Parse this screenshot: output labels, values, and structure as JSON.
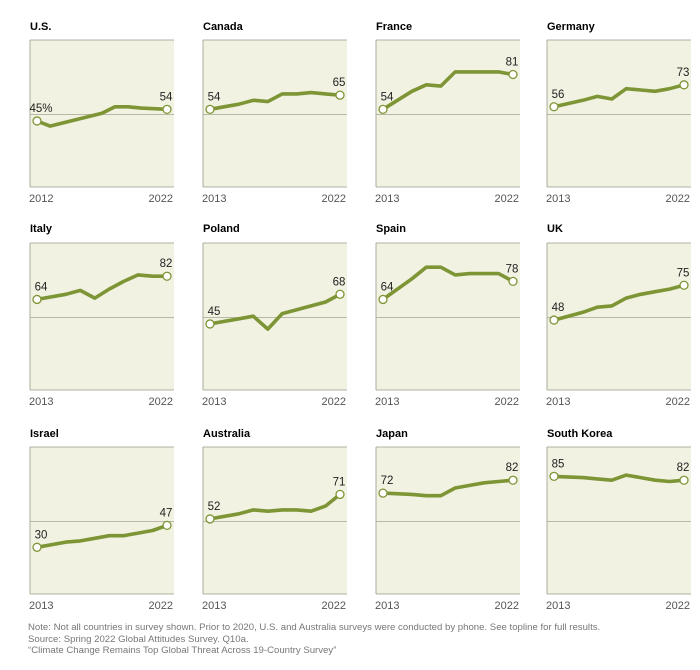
{
  "chart_data": {
    "type": "line",
    "panels": [
      {
        "title": "U.S.",
        "x_start": "2012",
        "x_end": "2022",
        "years": [
          2012,
          2013,
          2015,
          2017,
          2018,
          2019,
          2020,
          2022
        ],
        "values": [
          45,
          41,
          null,
          51,
          56,
          56,
          55,
          54
        ],
        "label_first": "45%",
        "label_last": "54"
      },
      {
        "title": "Canada",
        "x_start": "2013",
        "x_end": "2022",
        "years": [
          2013,
          2015,
          2016,
          2017,
          2018,
          2019,
          2020,
          2021,
          2022
        ],
        "values": [
          54,
          58,
          61,
          60,
          66,
          66,
          67,
          66,
          65
        ],
        "label_first": "54",
        "label_last": "65"
      },
      {
        "title": "France",
        "x_start": "2013",
        "x_end": "2022",
        "years": [
          2013,
          2015,
          2016,
          2017,
          2018,
          2019,
          2020,
          2021,
          2022
        ],
        "values": [
          54,
          68,
          73,
          72,
          83,
          83,
          83,
          83,
          81
        ],
        "label_first": "54",
        "label_last": "81"
      },
      {
        "title": "Germany",
        "x_start": "2013",
        "x_end": "2022",
        "years": [
          2013,
          2015,
          2016,
          2017,
          2018,
          2019,
          2020,
          2021,
          2022
        ],
        "values": [
          56,
          61,
          64,
          62,
          70,
          69,
          68,
          70,
          73
        ],
        "label_first": "56",
        "label_last": "73"
      },
      {
        "title": "Italy",
        "x_start": "2013",
        "x_end": "2022",
        "years": [
          2013,
          2015,
          2016,
          2017,
          2018,
          2019,
          2020,
          2021,
          2022
        ],
        "values": [
          64,
          68,
          71,
          65,
          72,
          78,
          83,
          82,
          82
        ],
        "label_first": "64",
        "label_last": "82"
      },
      {
        "title": "Poland",
        "x_start": "2013",
        "x_end": "2022",
        "years": [
          2013,
          2015,
          2016,
          2017,
          2018,
          2019,
          2020,
          2021,
          2022
        ],
        "values": [
          45,
          49,
          51,
          41,
          53,
          56,
          59,
          62,
          68
        ],
        "label_first": "45",
        "label_last": "68"
      },
      {
        "title": "Spain",
        "x_start": "2013",
        "x_end": "2022",
        "years": [
          2013,
          2015,
          2016,
          2017,
          2018,
          2019,
          2020,
          2021,
          2022
        ],
        "values": [
          64,
          80,
          89,
          89,
          83,
          84,
          84,
          84,
          78
        ],
        "label_first": "64",
        "label_last": "78"
      },
      {
        "title": "UK",
        "x_start": "2013",
        "x_end": "2022",
        "years": [
          2013,
          2015,
          2016,
          2017,
          2018,
          2019,
          2020,
          2021,
          2022
        ],
        "values": [
          48,
          54,
          58,
          59,
          65,
          68,
          70,
          72,
          75
        ],
        "label_first": "48",
        "label_last": "75"
      },
      {
        "title": "Israel",
        "x_start": "2013",
        "x_end": "2022",
        "years": [
          2013,
          2015,
          2016,
          2017,
          2018,
          2019,
          2020,
          2021,
          2022
        ],
        "values": [
          30,
          34,
          35,
          37,
          39,
          39,
          41,
          43,
          47
        ],
        "label_first": "30",
        "label_last": "47"
      },
      {
        "title": "Australia",
        "x_start": "2013",
        "x_end": "2022",
        "years": [
          2013,
          2015,
          2016,
          2017,
          2018,
          2019,
          2020,
          2021,
          2022
        ],
        "values": [
          52,
          56,
          59,
          58,
          59,
          59,
          58,
          62,
          71
        ],
        "label_first": "52",
        "label_last": "71"
      },
      {
        "title": "Japan",
        "x_start": "2013",
        "x_end": "2022",
        "years": [
          2013,
          2015,
          2016,
          2017,
          2018,
          2019,
          2020,
          2021,
          2022
        ],
        "values": [
          72,
          71,
          70,
          70,
          76,
          78,
          80,
          81,
          82
        ],
        "label_first": "72",
        "label_last": "82"
      },
      {
        "title": "South Korea",
        "x_start": "2013",
        "x_end": "2022",
        "years": [
          2013,
          2015,
          2016,
          2017,
          2018,
          2019,
          2020,
          2021,
          2022
        ],
        "values": [
          85,
          84,
          83,
          82,
          86,
          84,
          82,
          81,
          82
        ],
        "label_first": "85",
        "label_last": "82"
      }
    ],
    "grid": true,
    "series_color": "#7e9536"
  },
  "notes": {
    "note": "Note: Not all countries in survey shown. Prior to 2020, U.S. and Australia surveys were conducted by phone. See topline for full results.",
    "source": "Source: Spring 2022 Global Attitudes Survey. Q10a.",
    "report": "“Climate Change Remains Top Global Threat Across 19-Country Survey”"
  }
}
